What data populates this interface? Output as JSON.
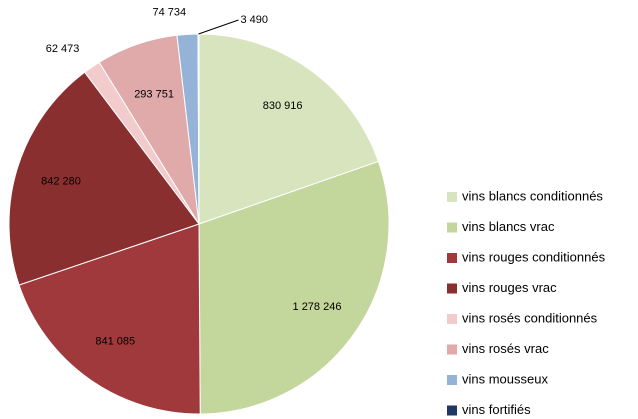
{
  "chart_data": {
    "type": "pie",
    "categories": [
      "vins blancs conditionnés",
      "vins blancs vrac",
      "vins rouges conditionnés",
      "vins rouges vrac",
      "vins rosés conditionnés",
      "vins rosés vrac",
      "vins mousseux",
      "vins fortifiés"
    ],
    "values": [
      830916,
      1278246,
      841085,
      842280,
      62473,
      293751,
      74734,
      3490
    ],
    "value_labels": [
      "830 916",
      "1 278 246",
      "841 085",
      "842 280",
      "62 473",
      "293 751",
      "74 734",
      "3 490"
    ],
    "colors": [
      "#d7e4bd",
      "#c3d69b",
      "#a0393b",
      "#8a2f2f",
      "#f2cbcc",
      "#e0a9aa",
      "#95b3d7",
      "#1f3864"
    ],
    "legend": "right"
  }
}
